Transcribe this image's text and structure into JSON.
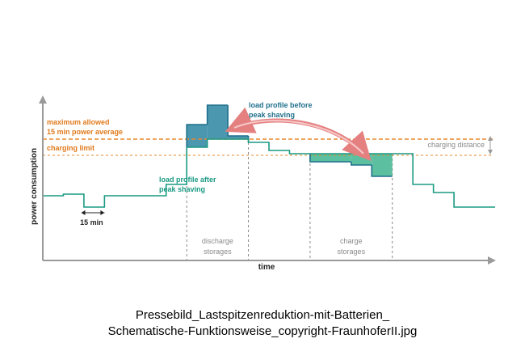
{
  "colors": {
    "axis": "#9a9a9a",
    "profile_after": "#1a9a82",
    "profile_before": "#1f6f8b",
    "peak_fill": "#4b97b0",
    "charge_fill": "#5cbfa0",
    "limit_line": "#e8872c",
    "orange_text": "#e07a1c",
    "teal_text": "#1a9a82",
    "blue_text": "#1f6f8b",
    "grey_text": "#8a8a8a",
    "arrow": "#e58080",
    "black_text": "#222222"
  },
  "chart_data": {
    "type": "line",
    "title": "",
    "xlabel": "time",
    "ylabel": "power consumption",
    "x_step_minutes": 15,
    "xlim": [
      0,
      22
    ],
    "ylim": [
      0,
      100
    ],
    "maximum_allowed_level": 75,
    "charging_limit_level": 65,
    "series": [
      {
        "name": "load profile after peak shaving",
        "step_x": [
          0,
          1,
          2,
          3,
          4,
          5,
          6,
          7,
          8,
          9,
          10,
          11,
          12,
          13,
          14,
          15,
          16,
          17,
          18,
          19,
          20,
          21,
          22
        ],
        "step_y": [
          40,
          41,
          33,
          40,
          40,
          40,
          47,
          70,
          75,
          75,
          73,
          68,
          66,
          66,
          66,
          66,
          66,
          66,
          47,
          42,
          33,
          33
        ]
      },
      {
        "name": "load profile before peak shaving",
        "segments": [
          {
            "x": [
              7,
              8
            ],
            "y": 84
          },
          {
            "x": [
              8,
              9
            ],
            "y": 96
          },
          {
            "x": [
              9,
              10
            ],
            "y": 77
          }
        ]
      },
      {
        "name": "charge storages fill",
        "segments": [
          {
            "x": [
              13,
              15
            ],
            "y": 61
          },
          {
            "x": [
              15,
              16
            ],
            "y": 59
          },
          {
            "x": [
              16,
              17
            ],
            "y": 52
          }
        ]
      }
    ],
    "interval_marker": {
      "x": [
        1,
        3
      ],
      "label": "15 min"
    },
    "phases": [
      {
        "x": [
          7,
          10
        ],
        "label": [
          "discharge",
          "storages"
        ]
      },
      {
        "x": [
          13,
          17
        ],
        "label": [
          "charge",
          "storages"
        ]
      }
    ],
    "annotations": {
      "maximum_allowed": [
        "maximum allowed",
        "15 min power average"
      ],
      "charging_limit": "charging limit",
      "charging_distance": "charging distance",
      "after_label": [
        "load profile after",
        "peak shaving"
      ],
      "before_label": [
        "load profile before",
        "peak shaving"
      ]
    }
  },
  "caption": {
    "line1": "Pressebild_Lastspitzenreduktion-mit-Batterien_",
    "line2": "Schematische-Funktionsweise_copyright-FraunhoferII.jpg"
  }
}
